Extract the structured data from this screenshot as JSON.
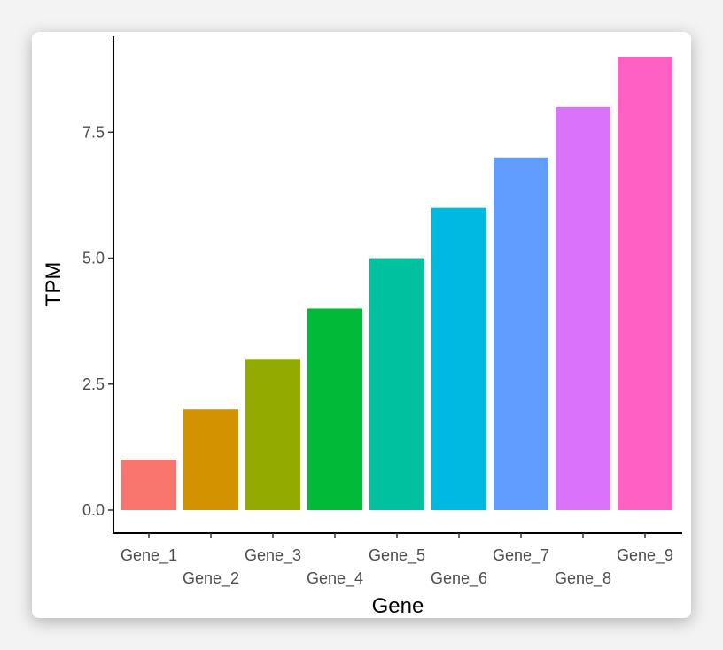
{
  "chart_data": {
    "type": "bar",
    "categories": [
      "Gene_1",
      "Gene_2",
      "Gene_3",
      "Gene_4",
      "Gene_5",
      "Gene_6",
      "Gene_7",
      "Gene_8",
      "Gene_9"
    ],
    "values": [
      1,
      2,
      3,
      4,
      5,
      6,
      7,
      8,
      9
    ],
    "colors": [
      "#F8766D",
      "#D39200",
      "#93AA00",
      "#00BA38",
      "#00C19F",
      "#00B9E3",
      "#619CFF",
      "#DB72FB",
      "#FF61C3"
    ],
    "xlabel": "Gene",
    "ylabel": "TPM",
    "yticks": [
      0,
      2.5,
      5,
      7.5
    ],
    "ytick_labels": [
      "0.0",
      "2.5",
      "5.0",
      "7.5"
    ],
    "ylim": [
      0,
      9
    ],
    "legend": "none",
    "grid": false
  }
}
